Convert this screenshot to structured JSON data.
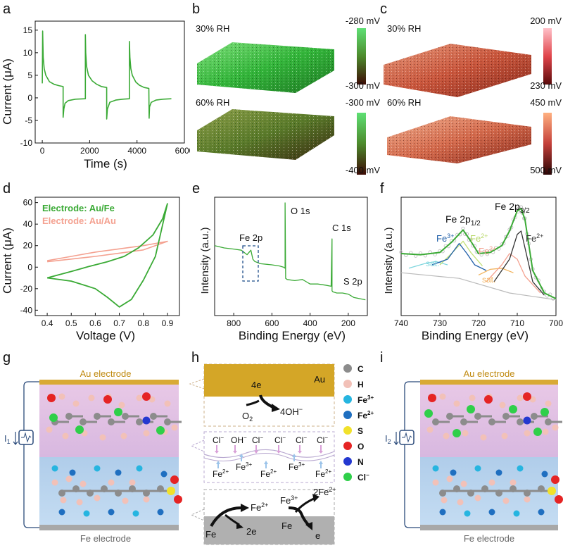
{
  "panels": {
    "a": "a",
    "b": "b",
    "c": "c",
    "d": "d",
    "e": "e",
    "f": "f",
    "g": "g",
    "h": "h",
    "i": "i"
  },
  "colors": {
    "green": "#3aaa35",
    "salmon": "#f4a190",
    "pink_bg": "#e7c2e4",
    "blue_bg": "#b9d3ee",
    "gold": "#d4a627",
    "gray": "#a7a7a7"
  },
  "chart_data": [
    {
      "panel": "a",
      "type": "line",
      "xlabel": "Time (s)",
      "ylabel": "Current (μA)",
      "xlim": [
        -300,
        6000
      ],
      "ylim": [
        -10,
        17
      ],
      "xticks": [
        0,
        2000,
        4000,
        6000
      ],
      "yticks": [
        -10,
        -5,
        0,
        5,
        10,
        15
      ],
      "series": [
        {
          "color": "#3aaa35",
          "x": [
            0,
            15,
            40,
            80,
            150,
            300,
            500,
            700,
            880,
            880,
            910,
            960,
            1100,
            1400,
            1820,
            1820,
            1835,
            1870,
            1950,
            2100,
            2300,
            2500,
            2720,
            2720,
            2750,
            2850,
            3100,
            3400,
            3680,
            3680,
            3700,
            3740,
            3800,
            3950,
            4100,
            4300,
            4500,
            4510,
            4530,
            4600,
            4800,
            5100,
            5450
          ],
          "y": [
            3.2,
            14.8,
            9,
            6.5,
            5,
            3.6,
            3,
            2.7,
            2.5,
            -4.3,
            -2.5,
            -1.2,
            -0.6,
            -0.3,
            -0.2,
            14,
            10,
            7,
            5,
            3.8,
            3,
            2.5,
            2.3,
            -4.7,
            -2.5,
            -1,
            -0.5,
            -0.3,
            -0.2,
            12.5,
            9,
            6.5,
            5,
            3.5,
            2.8,
            2.3,
            2.1,
            -4.5,
            -2,
            -1,
            -0.5,
            -0.3,
            -0.2
          ]
        }
      ]
    },
    {
      "panel": "b",
      "type": "heatmap",
      "surfaces": [
        {
          "label": "30% RH",
          "scale_top": "-280 mV",
          "scale_bottom": "-300 mV"
        },
        {
          "label": "60% RH",
          "scale_top": "-300 mV",
          "scale_bottom": "-400 mV"
        }
      ]
    },
    {
      "panel": "c",
      "type": "heatmap",
      "surfaces": [
        {
          "label": "30% RH",
          "scale_top": "200 mV",
          "scale_bottom": "230 mV"
        },
        {
          "label": "60% RH",
          "scale_top": "450 mV",
          "scale_bottom": "500 mV"
        }
      ]
    },
    {
      "panel": "d",
      "type": "line",
      "xlabel": "Voltage (V)",
      "ylabel": "Current (μA)",
      "xlim": [
        0.35,
        0.95
      ],
      "ylim": [
        -45,
        65
      ],
      "xticks": [
        0.4,
        0.5,
        0.6,
        0.7,
        0.8,
        0.9
      ],
      "yticks": [
        -40,
        -20,
        0,
        20,
        40,
        60
      ],
      "series": [
        {
          "name": "Electrode: Au/Fe",
          "color": "#3aaa35",
          "x": [
            0.4,
            0.5,
            0.6,
            0.65,
            0.7,
            0.75,
            0.8,
            0.85,
            0.9,
            0.88,
            0.84,
            0.78,
            0.72,
            0.65,
            0.58,
            0.5,
            0.4
          ],
          "y": [
            -10,
            -13,
            -20,
            -28,
            -37,
            -30,
            -12,
            10,
            59,
            45,
            30,
            18,
            10,
            5,
            1,
            -4,
            -10
          ]
        },
        {
          "name": "Electrode: Au/Au",
          "color": "#f4a190",
          "x": [
            0.4,
            0.5,
            0.6,
            0.7,
            0.8,
            0.9,
            0.8,
            0.7,
            0.6,
            0.5,
            0.4
          ],
          "y": [
            5,
            7.5,
            10,
            13,
            16,
            24,
            20,
            17,
            14,
            10,
            6
          ]
        }
      ]
    },
    {
      "panel": "e",
      "type": "line",
      "xlabel": "Binding Energy (eV)",
      "ylabel": "Intensity (a.u.)",
      "xlim": [
        900,
        100
      ],
      "xticks": [
        800,
        600,
        400,
        200
      ],
      "annotations": [
        "Fe 2p",
        "O 1s",
        "C 1s",
        "S 2p"
      ],
      "series": [
        {
          "color": "#3aaa35",
          "x": [
            900,
            850,
            800,
            760,
            730,
            710,
            700,
            690,
            660,
            600,
            560,
            540,
            531,
            531,
            528,
            520,
            480,
            440,
            420,
            400,
            360,
            320,
            290,
            285,
            285,
            280,
            260,
            230,
            200,
            170,
            140,
            110
          ],
          "y": [
            0.62,
            0.6,
            0.59,
            0.58,
            0.54,
            0.58,
            0.5,
            0.48,
            0.46,
            0.45,
            0.44,
            0.43,
            0.42,
            1.0,
            0.33,
            0.32,
            0.31,
            0.32,
            0.3,
            0.28,
            0.28,
            0.27,
            0.26,
            0.68,
            0.22,
            0.21,
            0.2,
            0.2,
            0.19,
            0.16,
            0.15,
            0.14
          ]
        }
      ]
    },
    {
      "panel": "f",
      "type": "line",
      "xlabel": "Binding Energy (eV)",
      "ylabel": "Intensity (a.u.)",
      "xlim": [
        740,
        700
      ],
      "xticks": [
        740,
        730,
        720,
        710,
        700
      ],
      "annotations": [
        "Fe 2p1/2",
        "Fe 2p3/2",
        "Fe3+",
        "Fe2+",
        "Fe3+",
        "Fe2+",
        "sat.",
        "sat."
      ],
      "series": [
        {
          "name": "envelope",
          "color": "#3aaa35",
          "x": [
            740,
            735,
            730,
            727,
            724,
            722,
            720,
            717,
            714,
            712,
            710,
            709,
            708,
            706,
            703,
            700
          ],
          "y": [
            0.55,
            0.54,
            0.56,
            0.65,
            0.76,
            0.66,
            0.55,
            0.56,
            0.62,
            0.75,
            0.93,
            0.95,
            0.85,
            0.4,
            0.2,
            0.15
          ]
        },
        {
          "name": "Fe2+ 2p3/2",
          "color": "#333333",
          "x": [
            716,
            712,
            710,
            709,
            708,
            706,
            703
          ],
          "y": [
            0.3,
            0.5,
            0.72,
            0.75,
            0.6,
            0.3,
            0.18
          ]
        },
        {
          "name": "Fe3+ 2p3/2",
          "color": "#f4a190",
          "x": [
            718,
            714,
            712,
            710,
            708,
            704
          ],
          "y": [
            0.3,
            0.45,
            0.55,
            0.5,
            0.35,
            0.2
          ]
        },
        {
          "name": "Fe3+ 2p1/2",
          "color": "#1f5fa8",
          "x": [
            732,
            728,
            725,
            723,
            721,
            718
          ],
          "y": [
            0.45,
            0.5,
            0.64,
            0.55,
            0.45,
            0.4
          ]
        },
        {
          "name": "Fe2+ 2p1/2",
          "color": "#c4e07a",
          "x": [
            730,
            727,
            724,
            722,
            719
          ],
          "y": [
            0.45,
            0.55,
            0.66,
            0.56,
            0.44
          ]
        },
        {
          "name": "sat. 1",
          "color": "#7fd6de",
          "x": [
            738,
            734,
            731,
            728
          ],
          "y": [
            0.42,
            0.46,
            0.48,
            0.45
          ]
        },
        {
          "name": "sat. 2",
          "color": "#f2b35c",
          "x": [
            720,
            717,
            714,
            711
          ],
          "y": [
            0.36,
            0.41,
            0.42,
            0.38
          ]
        }
      ]
    }
  ],
  "g": {
    "top": "Au electrode",
    "bottom": "Fe electrode",
    "current": "I"
  },
  "i": {
    "top": "Au electrode",
    "bottom": "Fe electrode",
    "current": "I"
  },
  "h": {
    "top": {
      "label": "Au",
      "e": "4e",
      "o2": "O",
      "oh": "4OH"
    },
    "mid": {
      "anions": [
        "Cl",
        "OH",
        "Cl",
        "Cl",
        "Cl",
        "Cl"
      ],
      "cations": [
        "Fe",
        "Fe",
        "Fe",
        "Fe",
        "Fe"
      ]
    },
    "bot": {
      "fe1": "Fe",
      "fe2plus": "Fe",
      "twoe": "2e",
      "fe3plus": "Fe",
      "fe": "Fe",
      "twofe2": "2Fe",
      "e": "e"
    }
  },
  "legend": [
    {
      "label": "C",
      "color": "#8c8c8c"
    },
    {
      "label": "H",
      "color": "#f2c1b8"
    },
    {
      "label": "Fe",
      "sup": "3+",
      "color": "#26b5e0"
    },
    {
      "label": "Fe",
      "sup": "2+",
      "color": "#1f6fc0"
    },
    {
      "label": "S",
      "color": "#f1e12b"
    },
    {
      "label": "O",
      "color": "#e52424"
    },
    {
      "label": "N",
      "color": "#2438d0"
    },
    {
      "label": "Cl",
      "sup": "−",
      "color": "#2fcf4a"
    }
  ]
}
